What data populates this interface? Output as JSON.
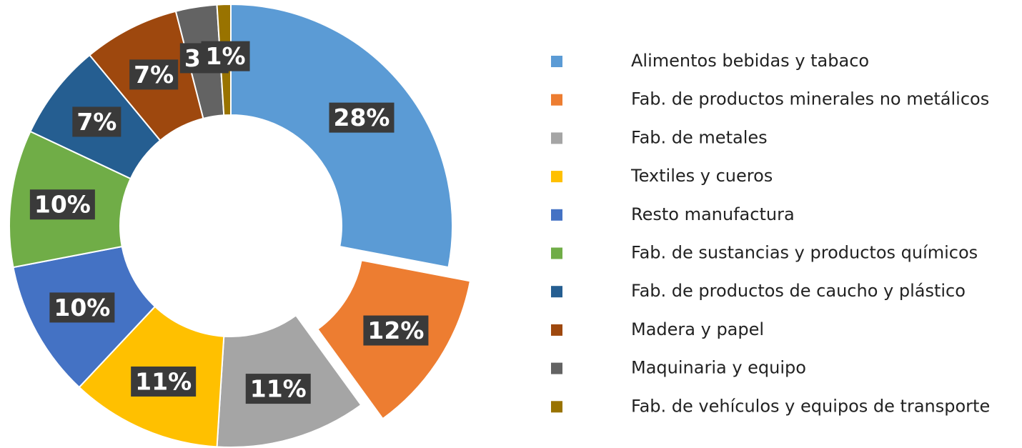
{
  "chart_data": {
    "type": "donut",
    "categories": [
      "Alimentos bebidas y tabaco",
      "Fab. de productos minerales no metálicos",
      "Fab. de metales",
      "Textiles y cueros",
      "Resto manufactura",
      "Fab. de sustancias y productos químicos",
      "Fab. de productos de caucho y plástico",
      "Madera y papel",
      "Maquinaria y equipo",
      "Fab. de vehículos y equipos de transporte"
    ],
    "values": [
      28,
      12,
      11,
      11,
      10,
      10,
      7,
      7,
      3,
      1
    ],
    "value_labels": [
      "28%",
      "12%",
      "11%",
      "11%",
      "10%",
      "10%",
      "7%",
      "7%",
      "3%",
      "1%"
    ],
    "colors": [
      "#5B9BD5",
      "#ED7D31",
      "#A5A5A5",
      "#FFC000",
      "#4472C4",
      "#70AD47",
      "#255E91",
      "#9E480E",
      "#636363",
      "#997300"
    ],
    "exploded": [
      1
    ],
    "legend": "right"
  }
}
